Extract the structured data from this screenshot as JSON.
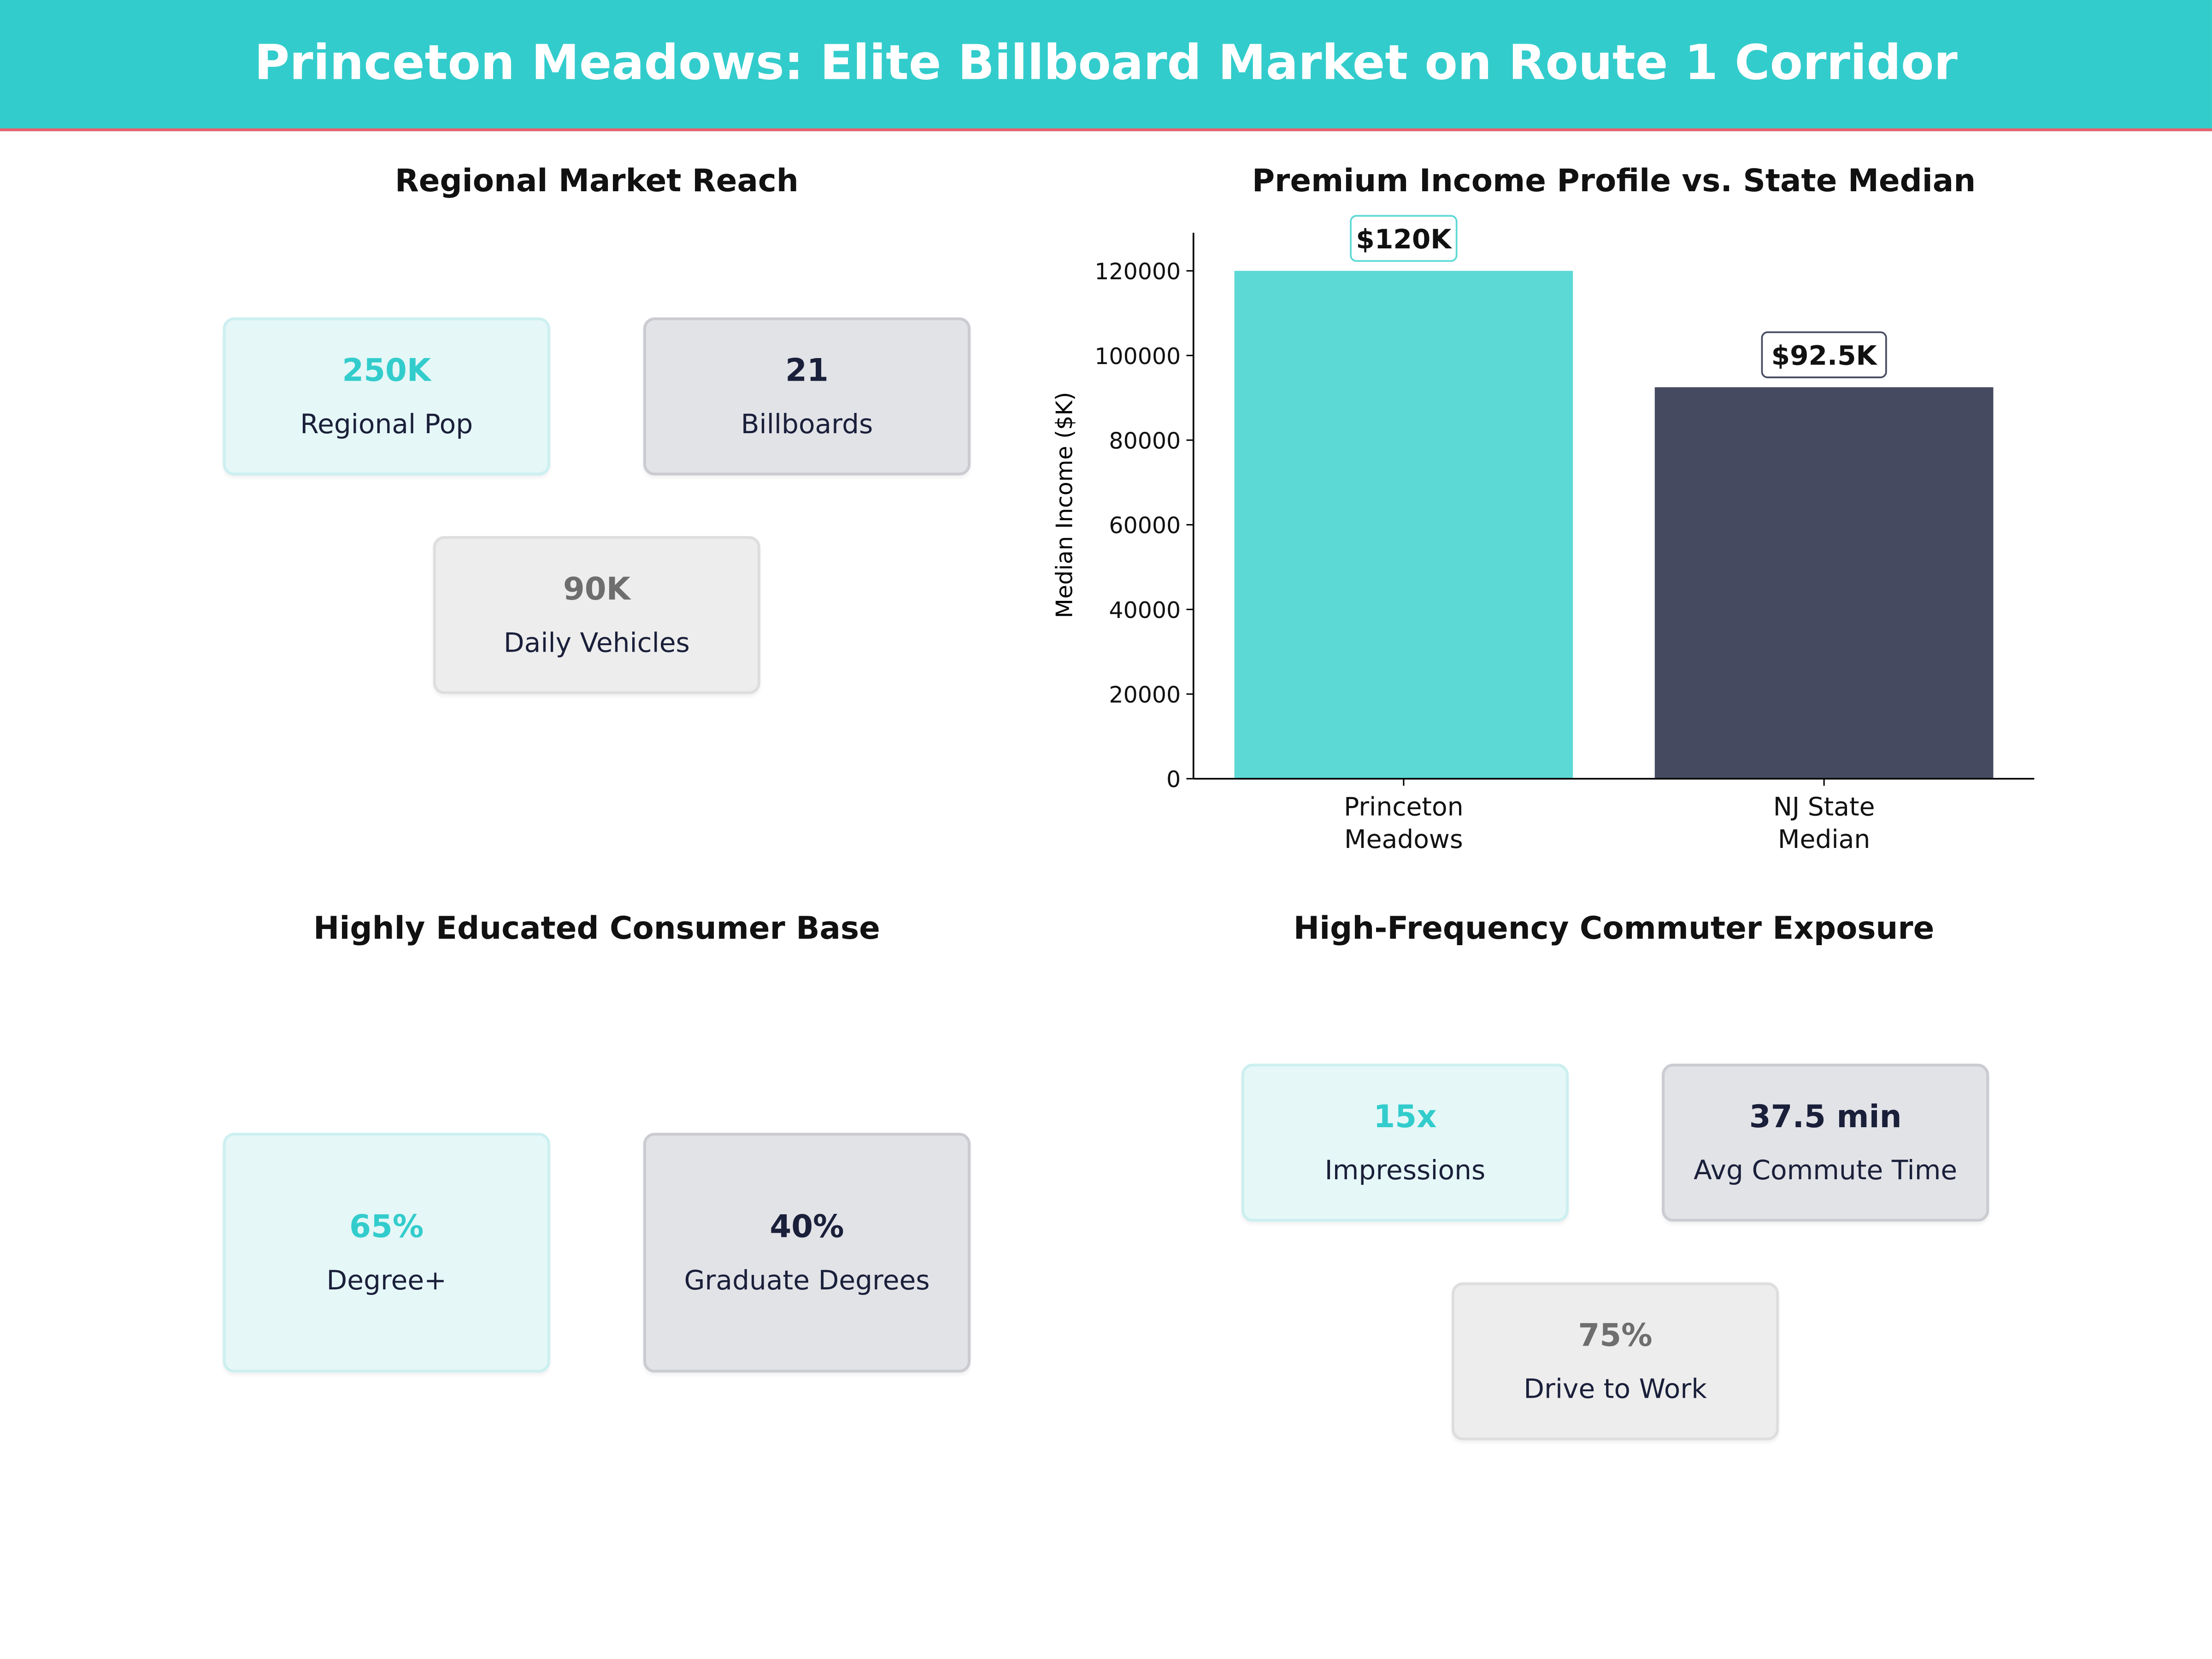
{
  "header": {
    "title": "Princeton Meadows: Elite Billboard Market on Route 1 Corridor"
  },
  "colors": {
    "accent": "#33CCCC",
    "header_rule": "#E8606E",
    "dark": "#454A60",
    "bar_teal": "#5CD8D5"
  },
  "reach": {
    "title": "Regional Market Reach",
    "cards": [
      {
        "value": "250K",
        "label": "Regional Pop"
      },
      {
        "value": "21",
        "label": "Billboards"
      },
      {
        "value": "90K",
        "label": "Daily Vehicles"
      }
    ]
  },
  "education": {
    "title": "Highly Educated Consumer Base",
    "cards": [
      {
        "value": "65%",
        "label": "Degree+"
      },
      {
        "value": "40%",
        "label": "Graduate Degrees"
      }
    ]
  },
  "commute": {
    "title": "High-Frequency Commuter Exposure",
    "cards": [
      {
        "value": "15x",
        "label": "Impressions"
      },
      {
        "value": "37.5 min",
        "label": "Avg Commute Time"
      },
      {
        "value": "75%",
        "label": "Drive to Work"
      }
    ]
  },
  "chart_data": {
    "type": "bar",
    "title": "Premium Income Profile vs. State Median",
    "categories": [
      "Princeton\nMeadows",
      "NJ State\nMedian"
    ],
    "category_lines": [
      [
        "Princeton",
        "Meadows"
      ],
      [
        "NJ State",
        "Median"
      ]
    ],
    "values": [
      120000,
      92500
    ],
    "data_labels": [
      "$120K",
      "$92.5K"
    ],
    "colors": [
      "#5CD8D5",
      "#454A60"
    ],
    "xlabel": "",
    "ylabel": "Median Income ($K)",
    "ylim": [
      0,
      129000
    ],
    "yticks": [
      0,
      20000,
      40000,
      60000,
      80000,
      100000,
      120000
    ],
    "grid": false
  }
}
